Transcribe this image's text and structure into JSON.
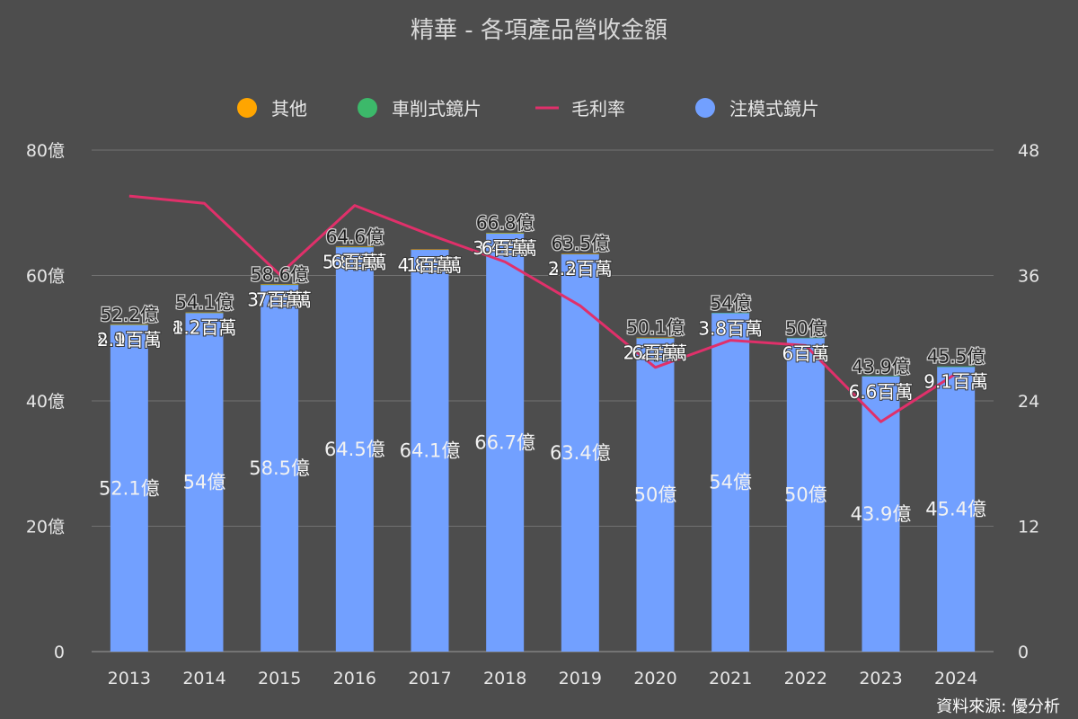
{
  "chart_data": {
    "type": "bar",
    "title": "精華 - 各項產品營收金額",
    "source": "資料來源: 優分析",
    "categories": [
      "2013",
      "2014",
      "2015",
      "2016",
      "2017",
      "2018",
      "2019",
      "2020",
      "2021",
      "2022",
      "2023",
      "2024"
    ],
    "legend": [
      {
        "name": "其他",
        "color": "#ffa500",
        "marker": "circle"
      },
      {
        "name": "車削式鏡片",
        "color": "#3cb96a",
        "marker": "circle"
      },
      {
        "name": "毛利率",
        "color": "#e0306a",
        "marker": "line"
      },
      {
        "name": "注模式鏡片",
        "color": "#72a0ff",
        "marker": "circle"
      }
    ],
    "left_axis": {
      "ticks": [
        "0",
        "20億",
        "40億",
        "60億",
        "80億"
      ],
      "range": [
        0,
        80
      ]
    },
    "right_axis": {
      "ticks": [
        "0",
        "12",
        "24",
        "36",
        "48"
      ],
      "range": [
        0,
        48
      ]
    },
    "series": [
      {
        "name": "注模式鏡片",
        "axis": "left",
        "kind": "bar",
        "color": "#72a0ff",
        "values": [
          52.1,
          54,
          58.5,
          64.5,
          64.1,
          66.7,
          63.4,
          50,
          54,
          50,
          43.9,
          45.4
        ],
        "labels": [
          "52.1億",
          "54億",
          "58.5億",
          "64.5億",
          "64.1億",
          "66.7億",
          "63.4億",
          "50億",
          "54億",
          "50億",
          "43.9億",
          "45.4億"
        ]
      },
      {
        "name": "車削式鏡片",
        "axis": "left",
        "kind": "bar",
        "color": "#3cb96a",
        "values": [
          0.089,
          0.082,
          0.037,
          0.058,
          0.048,
          0.034,
          0.033,
          0.022,
          0.038,
          0.06,
          0.066,
          0.091
        ],
        "labels": [
          "8.9百萬",
          "8.2百萬",
          "3.7百萬",
          "5.8百萬",
          "4.8百萬",
          "3.4百萬",
          "3.3百萬",
          "2.2百萬",
          "3.8百萬",
          "6百萬",
          "6.6百萬",
          "9.1百萬"
        ]
      },
      {
        "name": "其他",
        "axis": "left",
        "kind": "bar",
        "color": "#ffa500",
        "values": [
          0.021,
          0.012,
          0.07,
          0.06,
          0.01,
          0.06,
          0.022,
          0.06,
          0,
          0,
          0,
          0
        ],
        "labels": [
          "2.1百萬",
          "1.2百萬",
          "7百萬",
          "6百萬",
          "1百萬",
          "6百萬",
          "2.2百萬",
          "6百萬",
          "",
          "",
          "",
          ""
        ]
      },
      {
        "name": "毛利率",
        "axis": "right",
        "kind": "line",
        "color": "#e0306a",
        "values": [
          43.6,
          42.9,
          36.1,
          42.7,
          39.9,
          37.3,
          33.1,
          27.2,
          29.8,
          29.3,
          22.0,
          26.6
        ]
      }
    ],
    "totals": {
      "values": [
        52.2,
        54.1,
        58.6,
        64.6,
        64.1,
        66.8,
        63.5,
        50.1,
        54,
        50,
        43.9,
        45.5
      ],
      "labels": [
        "52.2億",
        "54.1億",
        "58.6億",
        "64.6億",
        "",
        "66.8億",
        "63.5億",
        "50.1億",
        "54億",
        "50億",
        "43.9億",
        "45.5億"
      ]
    },
    "grid": true,
    "legend_position": "top"
  }
}
